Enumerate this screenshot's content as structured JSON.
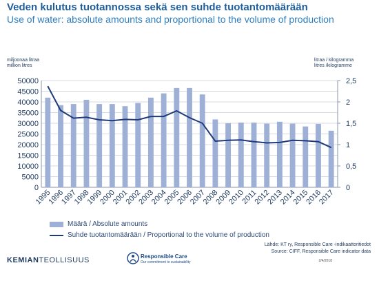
{
  "title": "Veden kulutus tuotannossa sekä sen suhde  tuotantomäärään",
  "subtitle": "Use of water: absolute amounts and proportional to the volume of production",
  "left_unit": [
    "miljoonaa litraa",
    "million litres"
  ],
  "right_unit": [
    "litraa / kilogramma",
    "litres /kilogramme"
  ],
  "chart_data": {
    "type": "bar",
    "categories": [
      "1995",
      "1996",
      "1997",
      "1998",
      "1999",
      "2000",
      "2001",
      "2002",
      "2003",
      "2004",
      "2005",
      "2006",
      "2007",
      "2008",
      "2009",
      "2010",
      "2011",
      "2012",
      "2013",
      "2014",
      "2015",
      "2016",
      "2017"
    ],
    "series": [
      {
        "name": "Määrä / Absolute amounts",
        "type": "bar",
        "axis": "left",
        "values": [
          42000,
          38500,
          39000,
          41000,
          39000,
          39000,
          38000,
          39500,
          42000,
          44000,
          46500,
          46500,
          43500,
          31800,
          30000,
          30300,
          30300,
          29800,
          30700,
          29800,
          28500,
          29700,
          26500
        ]
      },
      {
        "name": "Suhde tuotantomäärään / Proportional to the volume of production",
        "type": "line",
        "axis": "right",
        "values": [
          2.37,
          1.8,
          1.62,
          1.64,
          1.58,
          1.56,
          1.59,
          1.58,
          1.66,
          1.66,
          1.79,
          1.63,
          1.5,
          1.08,
          1.1,
          1.11,
          1.07,
          1.04,
          1.05,
          1.1,
          1.09,
          1.07,
          0.93
        ]
      }
    ],
    "y_left": {
      "min": 0,
      "max": 50000,
      "ticks": [
        "0",
        "5000",
        "10000",
        "15000",
        "20000",
        "25000",
        "30000",
        "35000",
        "40000",
        "45000",
        "50000"
      ]
    },
    "y_right": {
      "min": 0,
      "max": 2.5,
      "ticks": [
        "0",
        "0,5",
        "1",
        "1,5",
        "2",
        "2,5"
      ]
    },
    "grid": "horizontal",
    "legend_position": "bottom-left",
    "colors": {
      "bar": "#9fb0d6",
      "line": "#1f3a7a",
      "axis_text": "#1f3a5f"
    }
  },
  "source_fi": "Lähde: KT ry, Responsible Care -indikaattoritiedot",
  "source_en": "Source: CIFF, Responsible Care indicator data",
  "date": "2/4/2018",
  "logo": {
    "part1": "KEMIAN",
    "part2": "TEOLLISUUS"
  },
  "rc_logo": {
    "title": "Responsible Care",
    "subtitle": "Our commitment to sustainability"
  }
}
